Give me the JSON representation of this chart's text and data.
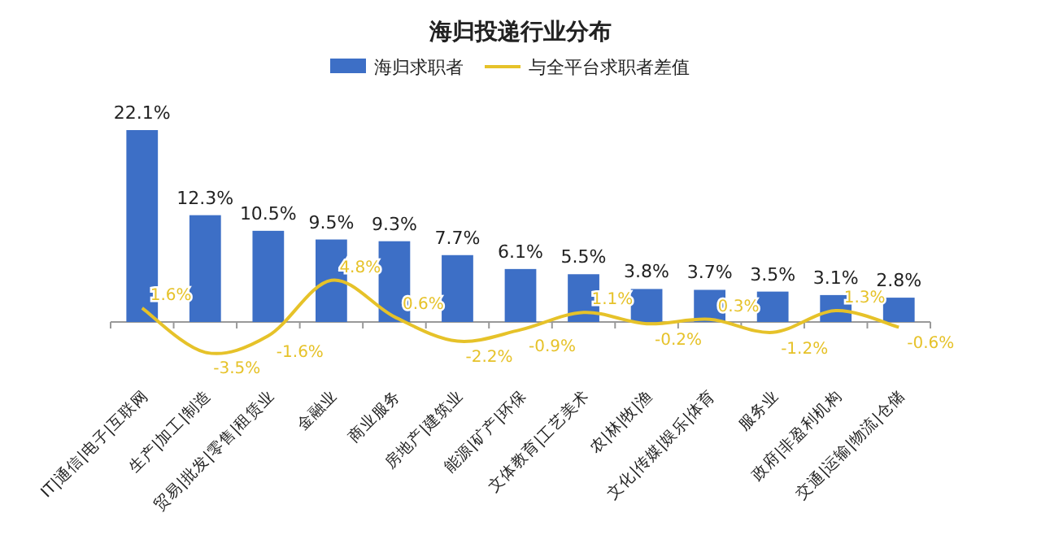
{
  "chart_data": {
    "type": "bar",
    "title": "海归投递行业分布",
    "legend": "top",
    "categories": [
      "IT|通信|电子|互联网",
      "生产|加工|制造",
      "贸易|批发|零售|租赁业",
      "金融业",
      "商业服务",
      "房地产|建筑业",
      "能源|矿产|环保",
      "文体教育|工艺美术",
      "农|林|牧|渔",
      "文化|传媒|娱乐|体育",
      "服务业",
      "政府|非盈利机构",
      "交通|运输|物流|仓储"
    ],
    "series": [
      {
        "name": "海归求职者",
        "color": "#3d6fc6",
        "values": [
          22.1,
          12.3,
          10.5,
          9.5,
          9.3,
          7.7,
          6.1,
          5.5,
          3.8,
          3.7,
          3.5,
          3.1,
          2.8
        ],
        "value_labels": [
          "22.1%",
          "12.3%",
          "10.5%",
          "9.5%",
          "9.3%",
          "7.7%",
          "6.1%",
          "5.5%",
          "3.8%",
          "3.7%",
          "3.5%",
          "3.1%",
          "2.8%"
        ]
      },
      {
        "name": "与全平台求职者差值",
        "type": "line",
        "color": "#e6c229",
        "values": [
          1.6,
          -3.5,
          -1.6,
          4.8,
          0.6,
          -2.2,
          -0.9,
          1.1,
          -0.2,
          0.3,
          -1.2,
          1.3,
          -0.6
        ],
        "value_labels": [
          "1.6%",
          "-3.5%",
          "-1.6%",
          "4.8%",
          "0.6%",
          "-2.2%",
          "-0.9%",
          "1.1%",
          "-0.2%",
          "0.3%",
          "-1.2%",
          "1.3%",
          "-0.6%"
        ]
      }
    ]
  }
}
